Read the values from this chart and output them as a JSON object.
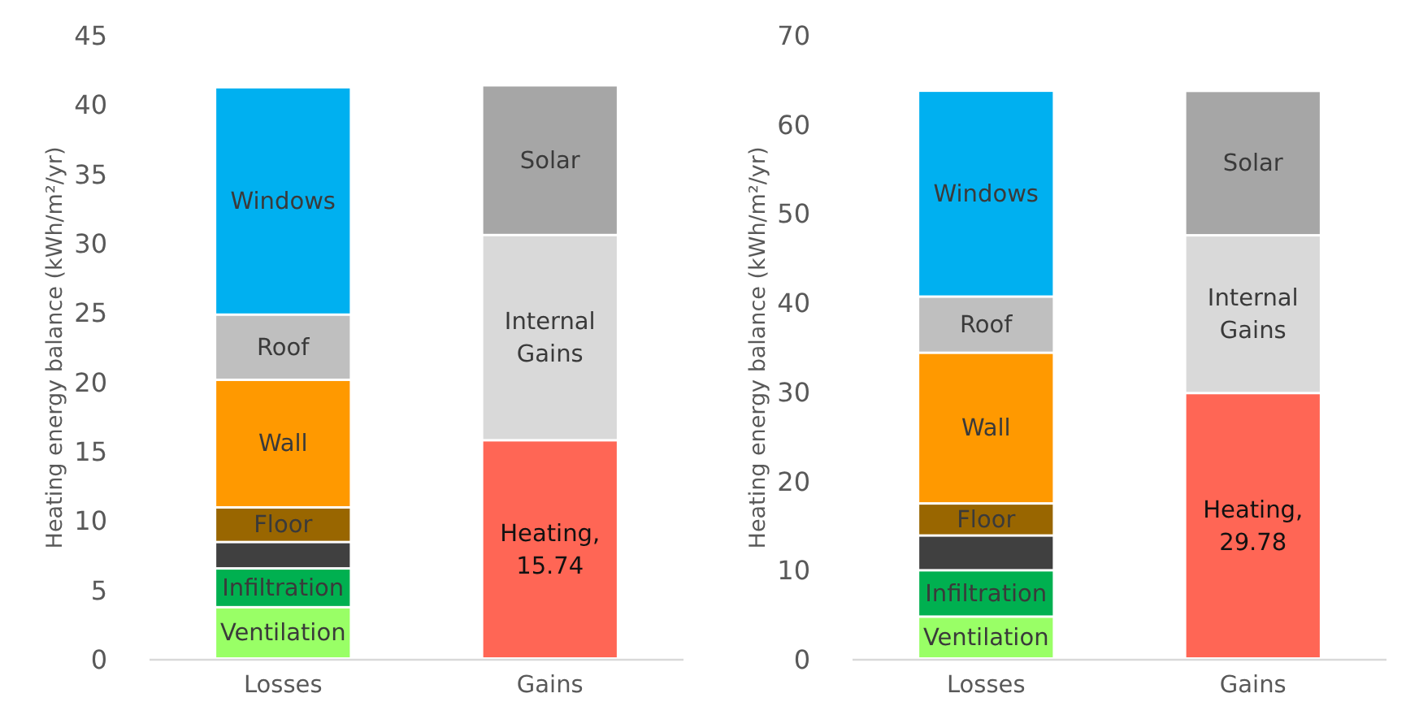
{
  "chart_data": [
    {
      "type": "bar",
      "stacked": true,
      "ylabel": "Heating energy balance (kWh/m²/yr)",
      "categories": [
        "Losses",
        "Gains"
      ],
      "ylim": [
        0,
        45
      ],
      "yticks": [
        0,
        5,
        10,
        15,
        20,
        25,
        30,
        35,
        40,
        45
      ],
      "grid": false,
      "series": [
        {
          "name": "Ventilation",
          "color": "#99ff66",
          "values": [
            3.7,
            null
          ]
        },
        {
          "name": "Infiltration",
          "color": "#00b050",
          "values": [
            2.8,
            null
          ]
        },
        {
          "color": "#404040",
          "values": [
            1.9,
            null
          ]
        },
        {
          "name": "Floor",
          "color": "#996600",
          "values": [
            2.5,
            null
          ]
        },
        {
          "name": "Wall",
          "color": "#ff9900",
          "values": [
            9.2,
            null
          ]
        },
        {
          "name": "Roof",
          "color": "#bfbfbf",
          "values": [
            4.7,
            null
          ]
        },
        {
          "name": "Windows",
          "color": "#00b0f0",
          "values": [
            16.4,
            null
          ]
        },
        {
          "name": "Heating,",
          "color": "#ff6655",
          "values": [
            null,
            15.74
          ],
          "value_labels": [
            null,
            "15.74"
          ]
        },
        {
          "name": "Internal Gains",
          "color": "#d9d9d9",
          "values": [
            null,
            14.8
          ]
        },
        {
          "name": "Solar",
          "color": "#a6a6a6",
          "values": [
            null,
            10.8
          ]
        }
      ]
    },
    {
      "type": "bar",
      "stacked": true,
      "ylabel": "Heating energy balance (kWh/m²/yr)",
      "categories": [
        "Losses",
        "Gains"
      ],
      "ylim": [
        0,
        70
      ],
      "yticks": [
        0,
        10,
        20,
        30,
        40,
        50,
        60,
        70
      ],
      "grid": false,
      "series": [
        {
          "name": "Ventilation",
          "color": "#99ff66",
          "values": [
            4.7,
            null
          ]
        },
        {
          "name": "Infiltration",
          "color": "#00b050",
          "values": [
            5.2,
            null
          ]
        },
        {
          "color": "#404040",
          "values": [
            3.9,
            null
          ]
        },
        {
          "name": "Floor",
          "color": "#996600",
          "values": [
            3.6,
            null
          ]
        },
        {
          "name": "Wall",
          "color": "#ff9900",
          "values": [
            16.9,
            null
          ]
        },
        {
          "name": "Roof",
          "color": "#bfbfbf",
          "values": [
            6.3,
            null
          ]
        },
        {
          "name": "Windows",
          "color": "#00b0f0",
          "values": [
            23.1,
            null
          ]
        },
        {
          "name": "Heating,",
          "color": "#ff6655",
          "values": [
            null,
            29.78
          ],
          "value_labels": [
            null,
            "29.78"
          ]
        },
        {
          "name": "Internal Gains",
          "color": "#d9d9d9",
          "values": [
            null,
            17.7
          ]
        },
        {
          "name": "Solar",
          "color": "#a6a6a6",
          "values": [
            null,
            16.2
          ]
        }
      ]
    }
  ]
}
